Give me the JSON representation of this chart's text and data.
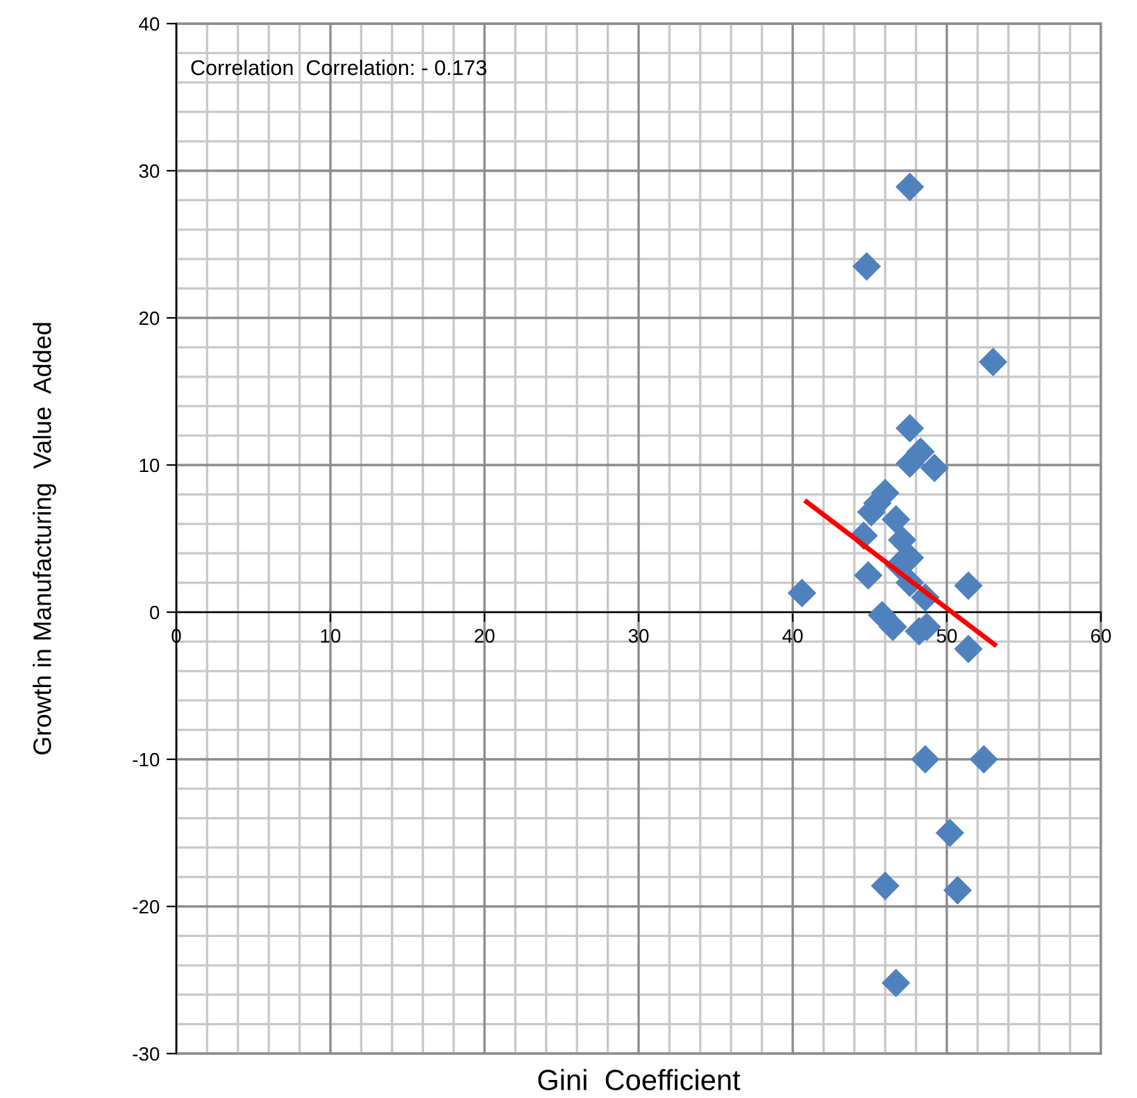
{
  "chart_data": {
    "type": "scatter",
    "xlabel": "Gini  Coefficient",
    "ylabel": "Growth in Manufacturing  Value  Added",
    "annotations": [
      "Correlation  Correlation: - 0.173"
    ],
    "xlim": [
      0,
      60
    ],
    "xticks": [
      0,
      10,
      20,
      30,
      40,
      50,
      60
    ],
    "ylim": [
      -30,
      40
    ],
    "yticks": [
      -30,
      -20,
      -10,
      0,
      10,
      20,
      30,
      40
    ],
    "grid": true,
    "series": [
      {
        "marker": "diamond",
        "color": "#4f81bd",
        "x": [
          40.6,
          44.8,
          47.6,
          53.0,
          47.6,
          48.3,
          47.6,
          49.2,
          46.0,
          45.5,
          45.1,
          46.7,
          44.6,
          47.1,
          47.6,
          46.9,
          44.9,
          47.6,
          51.4,
          48.6,
          45.8,
          46.5,
          48.2,
          48.7,
          51.4,
          48.6,
          52.4,
          50.2,
          46.0,
          50.7,
          46.7
        ],
        "values": [
          1.3,
          23.5,
          28.9,
          17.0,
          12.5,
          10.9,
          10.1,
          9.8,
          8.1,
          7.4,
          6.8,
          6.3,
          5.2,
          4.9,
          3.7,
          3.2,
          2.5,
          2.0,
          1.8,
          1.0,
          -0.2,
          -1.0,
          -1.3,
          -1.0,
          -2.5,
          -10.0,
          -10.0,
          -15.0,
          -18.6,
          -18.9,
          -25.2
        ]
      },
      {
        "type": "line",
        "marker": "none",
        "color": "#ff0000",
        "x": [
          40.9,
          53.1
        ],
        "values": [
          7.5,
          -2.2
        ]
      }
    ]
  }
}
